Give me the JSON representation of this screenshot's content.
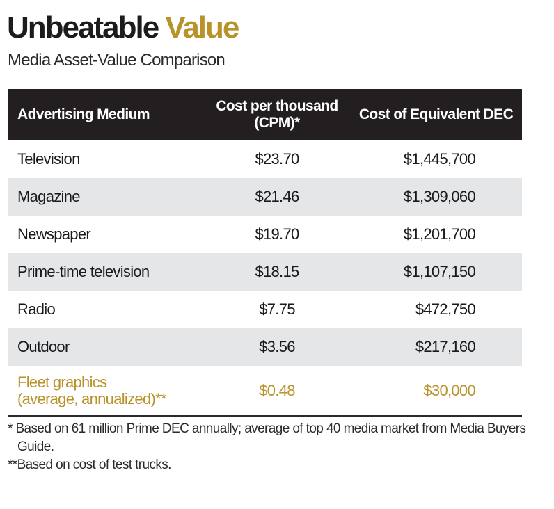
{
  "header": {
    "title_main": "Unbeatable",
    "title_accent": "Value",
    "subtitle": "Media Asset-Value Comparison"
  },
  "table": {
    "columns": [
      "Advertising Medium",
      "Cost per thousand (CPM)*",
      "Cost of Equivalent DEC"
    ],
    "rows": [
      {
        "medium": "Television",
        "cpm": "$23.70",
        "dec": "$1,445,700"
      },
      {
        "medium": "Magazine",
        "cpm": "$21.46",
        "dec": "$1,309,060"
      },
      {
        "medium": "Newspaper",
        "cpm": "$19.70",
        "dec": "$1,201,700"
      },
      {
        "medium": "Prime-time television",
        "cpm": "$18.15",
        "dec": "$1,107,150"
      },
      {
        "medium": "Radio",
        "cpm": "$7.75",
        "dec": "$472,750"
      },
      {
        "medium": "Outdoor",
        "cpm": "$3.56",
        "dec": "$217,160"
      }
    ],
    "highlight_row": {
      "medium_line1": "Fleet graphics",
      "medium_line2": "(average, annualized)**",
      "cpm": "$0.48",
      "dec": "$30,000"
    }
  },
  "footnotes": [
    "* Based on 61 million Prime DEC annually; average of top 40 media market from Media Buyers Guide.",
    "**Based on cost of test trucks."
  ],
  "colors": {
    "accent": "#b8922a",
    "header_bg": "#231f20",
    "row_shade": "#e5e6e7"
  }
}
